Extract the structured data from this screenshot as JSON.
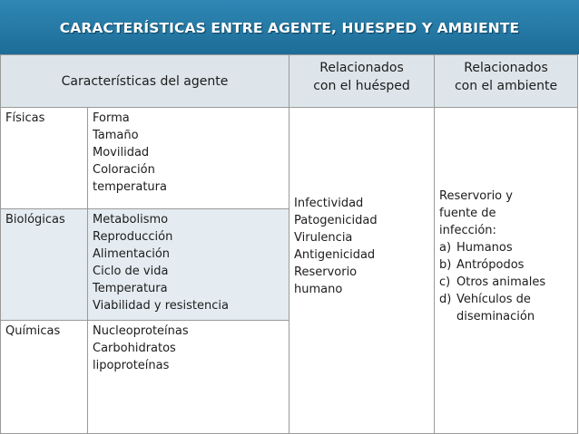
{
  "title": "CARACTERÍSTICAS ENTRE AGENTE, HUESPED Y AMBIENTE",
  "headers": {
    "agent": "Características del agente",
    "host_1": "Relacionados",
    "host_2": "con el huésped",
    "env_1": "Relacionados",
    "env_2": "con el ambiente"
  },
  "rows": [
    {
      "category": "Físicas",
      "items": [
        "Forma",
        "Tamaño",
        "Movilidad",
        "Coloración",
        "temperatura"
      ]
    },
    {
      "category": "Biológicas",
      "items": [
        "Metabolismo",
        "Reproducción",
        "Alimentación",
        "Ciclo de vida",
        "Temperatura",
        "Viabilidad y resistencia"
      ]
    },
    {
      "category": "Químicas",
      "items": [
        "Nucleoproteínas",
        "Carbohidratos",
        "lipoproteínas"
      ]
    }
  ],
  "host_items": [
    "Infectividad",
    "Patogenicidad",
    "Virulencia",
    "Antigenicidad",
    "Reservorio",
    "humano"
  ],
  "environment": {
    "intro": [
      "Reservorio y",
      "fuente de",
      "infección:"
    ],
    "list": [
      {
        "marker": "a)",
        "text": "Humanos"
      },
      {
        "marker": "b)",
        "text": "Antrópodos"
      },
      {
        "marker": "c)",
        "text": "Otros animales"
      },
      {
        "marker": "d)",
        "text": "Vehículos de"
      }
    ],
    "continuation": "diseminación"
  }
}
